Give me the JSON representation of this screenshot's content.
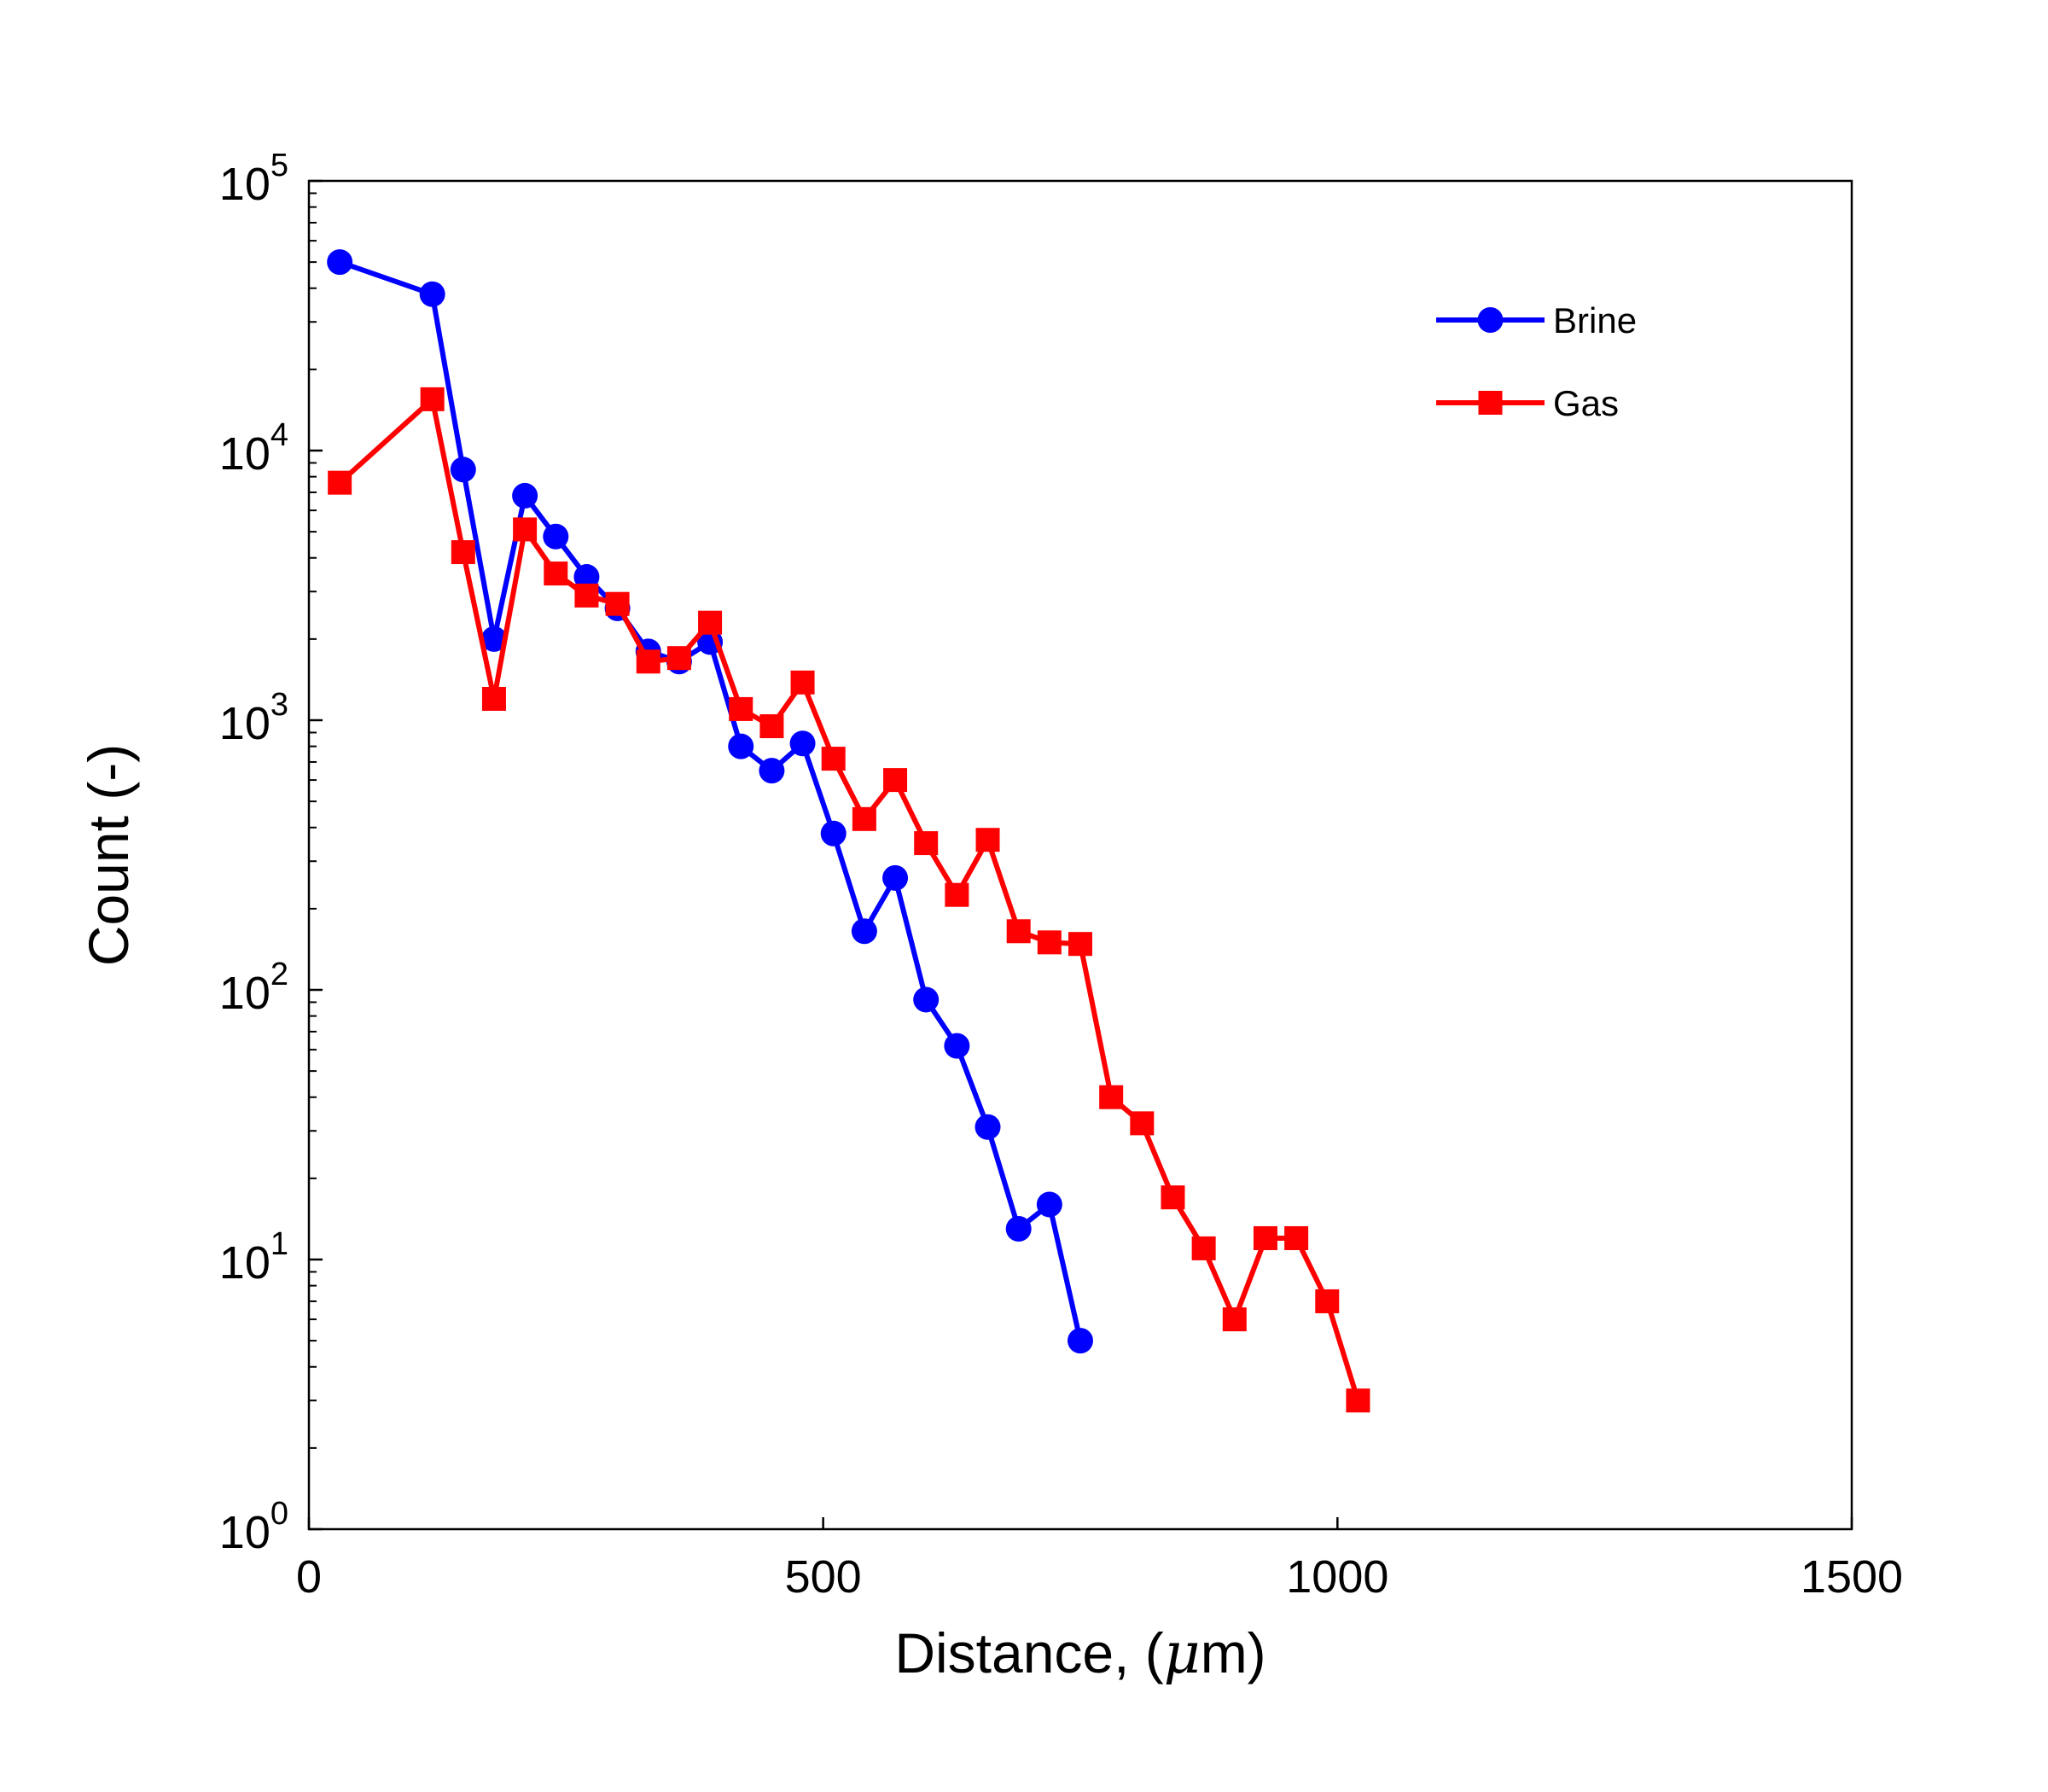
{
  "chart_data": {
    "type": "line",
    "title": "",
    "xlabel": {
      "prefix": "Distance, (",
      "symbol": "μ",
      "suffix": "m)"
    },
    "ylabel": "Count (-)",
    "xlim": [
      0,
      1500
    ],
    "ylim": [
      1,
      100000
    ],
    "yscale": "log",
    "x_ticks": [
      0,
      500,
      1000,
      1500
    ],
    "x_tick_labels": [
      "0",
      "500",
      "1000",
      "1500"
    ],
    "y_ticks": [
      1,
      10,
      100,
      1000,
      10000,
      100000
    ],
    "y_tick_labels": [
      {
        "base": "10",
        "exp": "0"
      },
      {
        "base": "10",
        "exp": "1"
      },
      {
        "base": "10",
        "exp": "2"
      },
      {
        "base": "10",
        "exp": "3"
      },
      {
        "base": "10",
        "exp": "4"
      },
      {
        "base": "10",
        "exp": "5"
      }
    ],
    "grid": false,
    "legend_position": "top-right",
    "series": [
      {
        "name": "Brine",
        "color": "#0000ff",
        "marker": "circle",
        "x": [
          30,
          120,
          150,
          180,
          210,
          240,
          270,
          300,
          330,
          360,
          390,
          420,
          450,
          480,
          510,
          540,
          570,
          600,
          630,
          660,
          690,
          720,
          750
        ],
        "y": [
          50000,
          38000,
          8500,
          2000,
          6800,
          4800,
          3400,
          2600,
          1800,
          1650,
          1950,
          800,
          650,
          820,
          380,
          165,
          260,
          92,
          62,
          31,
          13,
          16,
          5
        ]
      },
      {
        "name": "Gas",
        "color": "#ff0000",
        "marker": "square",
        "x": [
          30,
          120,
          150,
          180,
          210,
          240,
          270,
          300,
          330,
          360,
          390,
          420,
          450,
          480,
          510,
          540,
          570,
          600,
          630,
          660,
          690,
          720,
          750,
          780,
          810,
          840,
          870,
          900,
          930,
          960,
          990,
          1020
        ],
        "y": [
          7600,
          15500,
          4200,
          1200,
          5100,
          3500,
          2900,
          2700,
          1650,
          1700,
          2300,
          1100,
          950,
          1380,
          720,
          430,
          600,
          350,
          225,
          360,
          165,
          150,
          148,
          40,
          32,
          17,
          11,
          6,
          12,
          12,
          7,
          3
        ]
      }
    ]
  }
}
